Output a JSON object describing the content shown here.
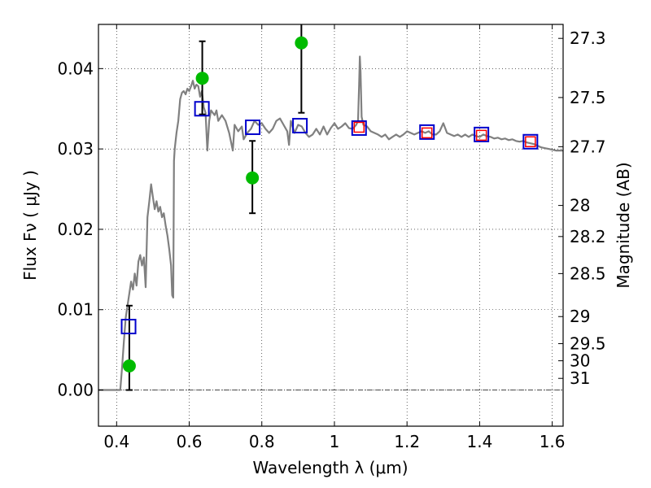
{
  "chart_data": {
    "type": "scatter",
    "xlabel": "Wavelength  λ (μm)",
    "ylabel": "Flux  Fν  ( μJy )",
    "ylabel_right": "Magnitude (AB)",
    "xlim": [
      0.35,
      1.63
    ],
    "ylim": [
      -0.0045,
      0.0455
    ],
    "x_ticks": [
      0.4,
      0.6,
      0.8,
      1.0,
      1.2,
      1.4,
      1.6
    ],
    "x_tick_labels": [
      "0.4",
      "0.6",
      "0.8",
      "1",
      "1.2",
      "1.4",
      "1.6"
    ],
    "y_ticks": [
      0.0,
      0.01,
      0.02,
      0.03,
      0.04
    ],
    "y_tick_labels": [
      "0.00",
      "0.01",
      "0.02",
      "0.03",
      "0.04"
    ],
    "right_ticks": [
      {
        "label": "27.3",
        "flux": 0.04376
      },
      {
        "label": "27.5",
        "flux": 0.0364
      },
      {
        "label": "27.7",
        "flux": 0.03028
      },
      {
        "label": "28",
        "flux": 0.02297
      },
      {
        "label": "28.2",
        "flux": 0.0191
      },
      {
        "label": "28.5",
        "flux": 0.01449
      },
      {
        "label": "29",
        "flux": 0.00914
      },
      {
        "label": "29.5",
        "flux": 0.00577
      },
      {
        "label": "30",
        "flux": 0.00364
      },
      {
        "label": "31",
        "flux": 0.00145
      }
    ],
    "grid": true,
    "zero_line": true,
    "series": [
      {
        "style": "line",
        "color": "#808080",
        "points": [
          [
            0.35,
            0.0
          ],
          [
            0.4,
            0.0
          ],
          [
            0.41,
            0.0
          ],
          [
            0.415,
            0.0028
          ],
          [
            0.42,
            0.006
          ],
          [
            0.425,
            0.009
          ],
          [
            0.43,
            0.0105
          ],
          [
            0.435,
            0.012
          ],
          [
            0.44,
            0.0135
          ],
          [
            0.445,
            0.0125
          ],
          [
            0.45,
            0.0145
          ],
          [
            0.455,
            0.013
          ],
          [
            0.46,
            0.016
          ],
          [
            0.465,
            0.0168
          ],
          [
            0.47,
            0.0155
          ],
          [
            0.475,
            0.0165
          ],
          [
            0.48,
            0.0128
          ],
          [
            0.485,
            0.0215
          ],
          [
            0.49,
            0.0235
          ],
          [
            0.495,
            0.0256
          ],
          [
            0.5,
            0.024
          ],
          [
            0.505,
            0.0225
          ],
          [
            0.51,
            0.0235
          ],
          [
            0.515,
            0.0222
          ],
          [
            0.52,
            0.0228
          ],
          [
            0.525,
            0.0215
          ],
          [
            0.53,
            0.022
          ],
          [
            0.535,
            0.0205
          ],
          [
            0.54,
            0.0192
          ],
          [
            0.545,
            0.0175
          ],
          [
            0.55,
            0.0155
          ],
          [
            0.553,
            0.0118
          ],
          [
            0.556,
            0.0115
          ],
          [
            0.558,
            0.0285
          ],
          [
            0.56,
            0.03
          ],
          [
            0.565,
            0.032
          ],
          [
            0.57,
            0.0335
          ],
          [
            0.575,
            0.0362
          ],
          [
            0.58,
            0.037
          ],
          [
            0.585,
            0.0372
          ],
          [
            0.59,
            0.0368
          ],
          [
            0.595,
            0.0375
          ],
          [
            0.6,
            0.0372
          ],
          [
            0.605,
            0.0378
          ],
          [
            0.61,
            0.0385
          ],
          [
            0.615,
            0.0375
          ],
          [
            0.62,
            0.038
          ],
          [
            0.625,
            0.0378
          ],
          [
            0.63,
            0.0365
          ],
          [
            0.635,
            0.0372
          ],
          [
            0.64,
            0.0352
          ],
          [
            0.645,
            0.0345
          ],
          [
            0.65,
            0.0298
          ],
          [
            0.655,
            0.0335
          ],
          [
            0.66,
            0.0348
          ],
          [
            0.665,
            0.0345
          ],
          [
            0.67,
            0.0342
          ],
          [
            0.675,
            0.0348
          ],
          [
            0.68,
            0.0335
          ],
          [
            0.69,
            0.0342
          ],
          [
            0.7,
            0.0335
          ],
          [
            0.71,
            0.032
          ],
          [
            0.72,
            0.0298
          ],
          [
            0.725,
            0.033
          ],
          [
            0.735,
            0.0322
          ],
          [
            0.745,
            0.0328
          ],
          [
            0.75,
            0.0312
          ],
          [
            0.76,
            0.032
          ],
          [
            0.77,
            0.0325
          ],
          [
            0.78,
            0.0335
          ],
          [
            0.79,
            0.033
          ],
          [
            0.8,
            0.0332
          ],
          [
            0.81,
            0.0325
          ],
          [
            0.82,
            0.032
          ],
          [
            0.83,
            0.0325
          ],
          [
            0.84,
            0.0335
          ],
          [
            0.85,
            0.0338
          ],
          [
            0.86,
            0.033
          ],
          [
            0.87,
            0.0322
          ],
          [
            0.875,
            0.0305
          ],
          [
            0.88,
            0.0335
          ],
          [
            0.89,
            0.032
          ],
          [
            0.9,
            0.033
          ],
          [
            0.91,
            0.0328
          ],
          [
            0.92,
            0.032
          ],
          [
            0.93,
            0.0315
          ],
          [
            0.94,
            0.0318
          ],
          [
            0.95,
            0.0325
          ],
          [
            0.96,
            0.0318
          ],
          [
            0.97,
            0.0328
          ],
          [
            0.98,
            0.0318
          ],
          [
            0.99,
            0.0326
          ],
          [
            1.0,
            0.0332
          ],
          [
            1.01,
            0.0325
          ],
          [
            1.02,
            0.0328
          ],
          [
            1.03,
            0.0332
          ],
          [
            1.04,
            0.0326
          ],
          [
            1.05,
            0.0325
          ],
          [
            1.06,
            0.033
          ],
          [
            1.065,
            0.0335
          ],
          [
            1.068,
            0.038
          ],
          [
            1.07,
            0.0415
          ],
          [
            1.072,
            0.0395
          ],
          [
            1.075,
            0.034
          ],
          [
            1.08,
            0.033
          ],
          [
            1.09,
            0.0328
          ],
          [
            1.1,
            0.0322
          ],
          [
            1.11,
            0.032
          ],
          [
            1.12,
            0.0318
          ],
          [
            1.13,
            0.0315
          ],
          [
            1.14,
            0.0318
          ],
          [
            1.15,
            0.0312
          ],
          [
            1.16,
            0.0315
          ],
          [
            1.17,
            0.0318
          ],
          [
            1.18,
            0.0315
          ],
          [
            1.19,
            0.0318
          ],
          [
            1.2,
            0.0322
          ],
          [
            1.21,
            0.032
          ],
          [
            1.22,
            0.0318
          ],
          [
            1.23,
            0.032
          ],
          [
            1.24,
            0.0322
          ],
          [
            1.25,
            0.032
          ],
          [
            1.26,
            0.0322
          ],
          [
            1.27,
            0.0318
          ],
          [
            1.28,
            0.0318
          ],
          [
            1.29,
            0.0322
          ],
          [
            1.3,
            0.0332
          ],
          [
            1.31,
            0.032
          ],
          [
            1.32,
            0.0318
          ],
          [
            1.33,
            0.0316
          ],
          [
            1.34,
            0.0318
          ],
          [
            1.35,
            0.0315
          ],
          [
            1.36,
            0.0318
          ],
          [
            1.37,
            0.0315
          ],
          [
            1.38,
            0.0318
          ],
          [
            1.39,
            0.0316
          ],
          [
            1.4,
            0.0315
          ],
          [
            1.41,
            0.0318
          ],
          [
            1.42,
            0.0316
          ],
          [
            1.43,
            0.0315
          ],
          [
            1.44,
            0.0313
          ],
          [
            1.45,
            0.0314
          ],
          [
            1.46,
            0.0312
          ],
          [
            1.47,
            0.0313
          ],
          [
            1.48,
            0.0311
          ],
          [
            1.49,
            0.0312
          ],
          [
            1.5,
            0.031
          ],
          [
            1.51,
            0.0309
          ],
          [
            1.52,
            0.031
          ],
          [
            1.53,
            0.0308
          ],
          [
            1.54,
            0.0307
          ],
          [
            1.55,
            0.0306
          ],
          [
            1.56,
            0.0304
          ],
          [
            1.57,
            0.0302
          ],
          [
            1.58,
            0.0301
          ],
          [
            1.59,
            0.03
          ],
          [
            1.6,
            0.0299
          ],
          [
            1.61,
            0.0298
          ],
          [
            1.62,
            0.0298
          ],
          [
            1.63,
            0.0298
          ]
        ]
      },
      {
        "style": "filled-circle",
        "color": "#00bb00",
        "points": [
          {
            "x": 0.435,
            "y": 0.003,
            "err_low": 0.003,
            "err_high": 0.0075
          },
          {
            "x": 0.636,
            "y": 0.0388,
            "err_low": 0.0045,
            "err_high": 0.0046
          },
          {
            "x": 0.774,
            "y": 0.0264,
            "err_low": 0.0044,
            "err_high": 0.0046
          },
          {
            "x": 0.909,
            "y": 0.0432,
            "err_low": 0.0087,
            "err_high": 0.005
          }
        ]
      },
      {
        "style": "open-square",
        "color": "#0000cc",
        "points": [
          {
            "x": 0.433,
            "y": 0.0079
          },
          {
            "x": 0.635,
            "y": 0.035
          },
          {
            "x": 0.775,
            "y": 0.0327
          },
          {
            "x": 0.905,
            "y": 0.0329
          },
          {
            "x": 1.068,
            "y": 0.0326
          },
          {
            "x": 1.255,
            "y": 0.0321
          },
          {
            "x": 1.405,
            "y": 0.0318
          },
          {
            "x": 1.54,
            "y": 0.0309
          }
        ]
      },
      {
        "style": "open-square-small",
        "color": "#ff0000",
        "points": [
          {
            "x": 1.068,
            "y": 0.0327
          },
          {
            "x": 1.255,
            "y": 0.032
          },
          {
            "x": 1.405,
            "y": 0.0317
          },
          {
            "x": 1.54,
            "y": 0.0309
          }
        ]
      }
    ]
  }
}
